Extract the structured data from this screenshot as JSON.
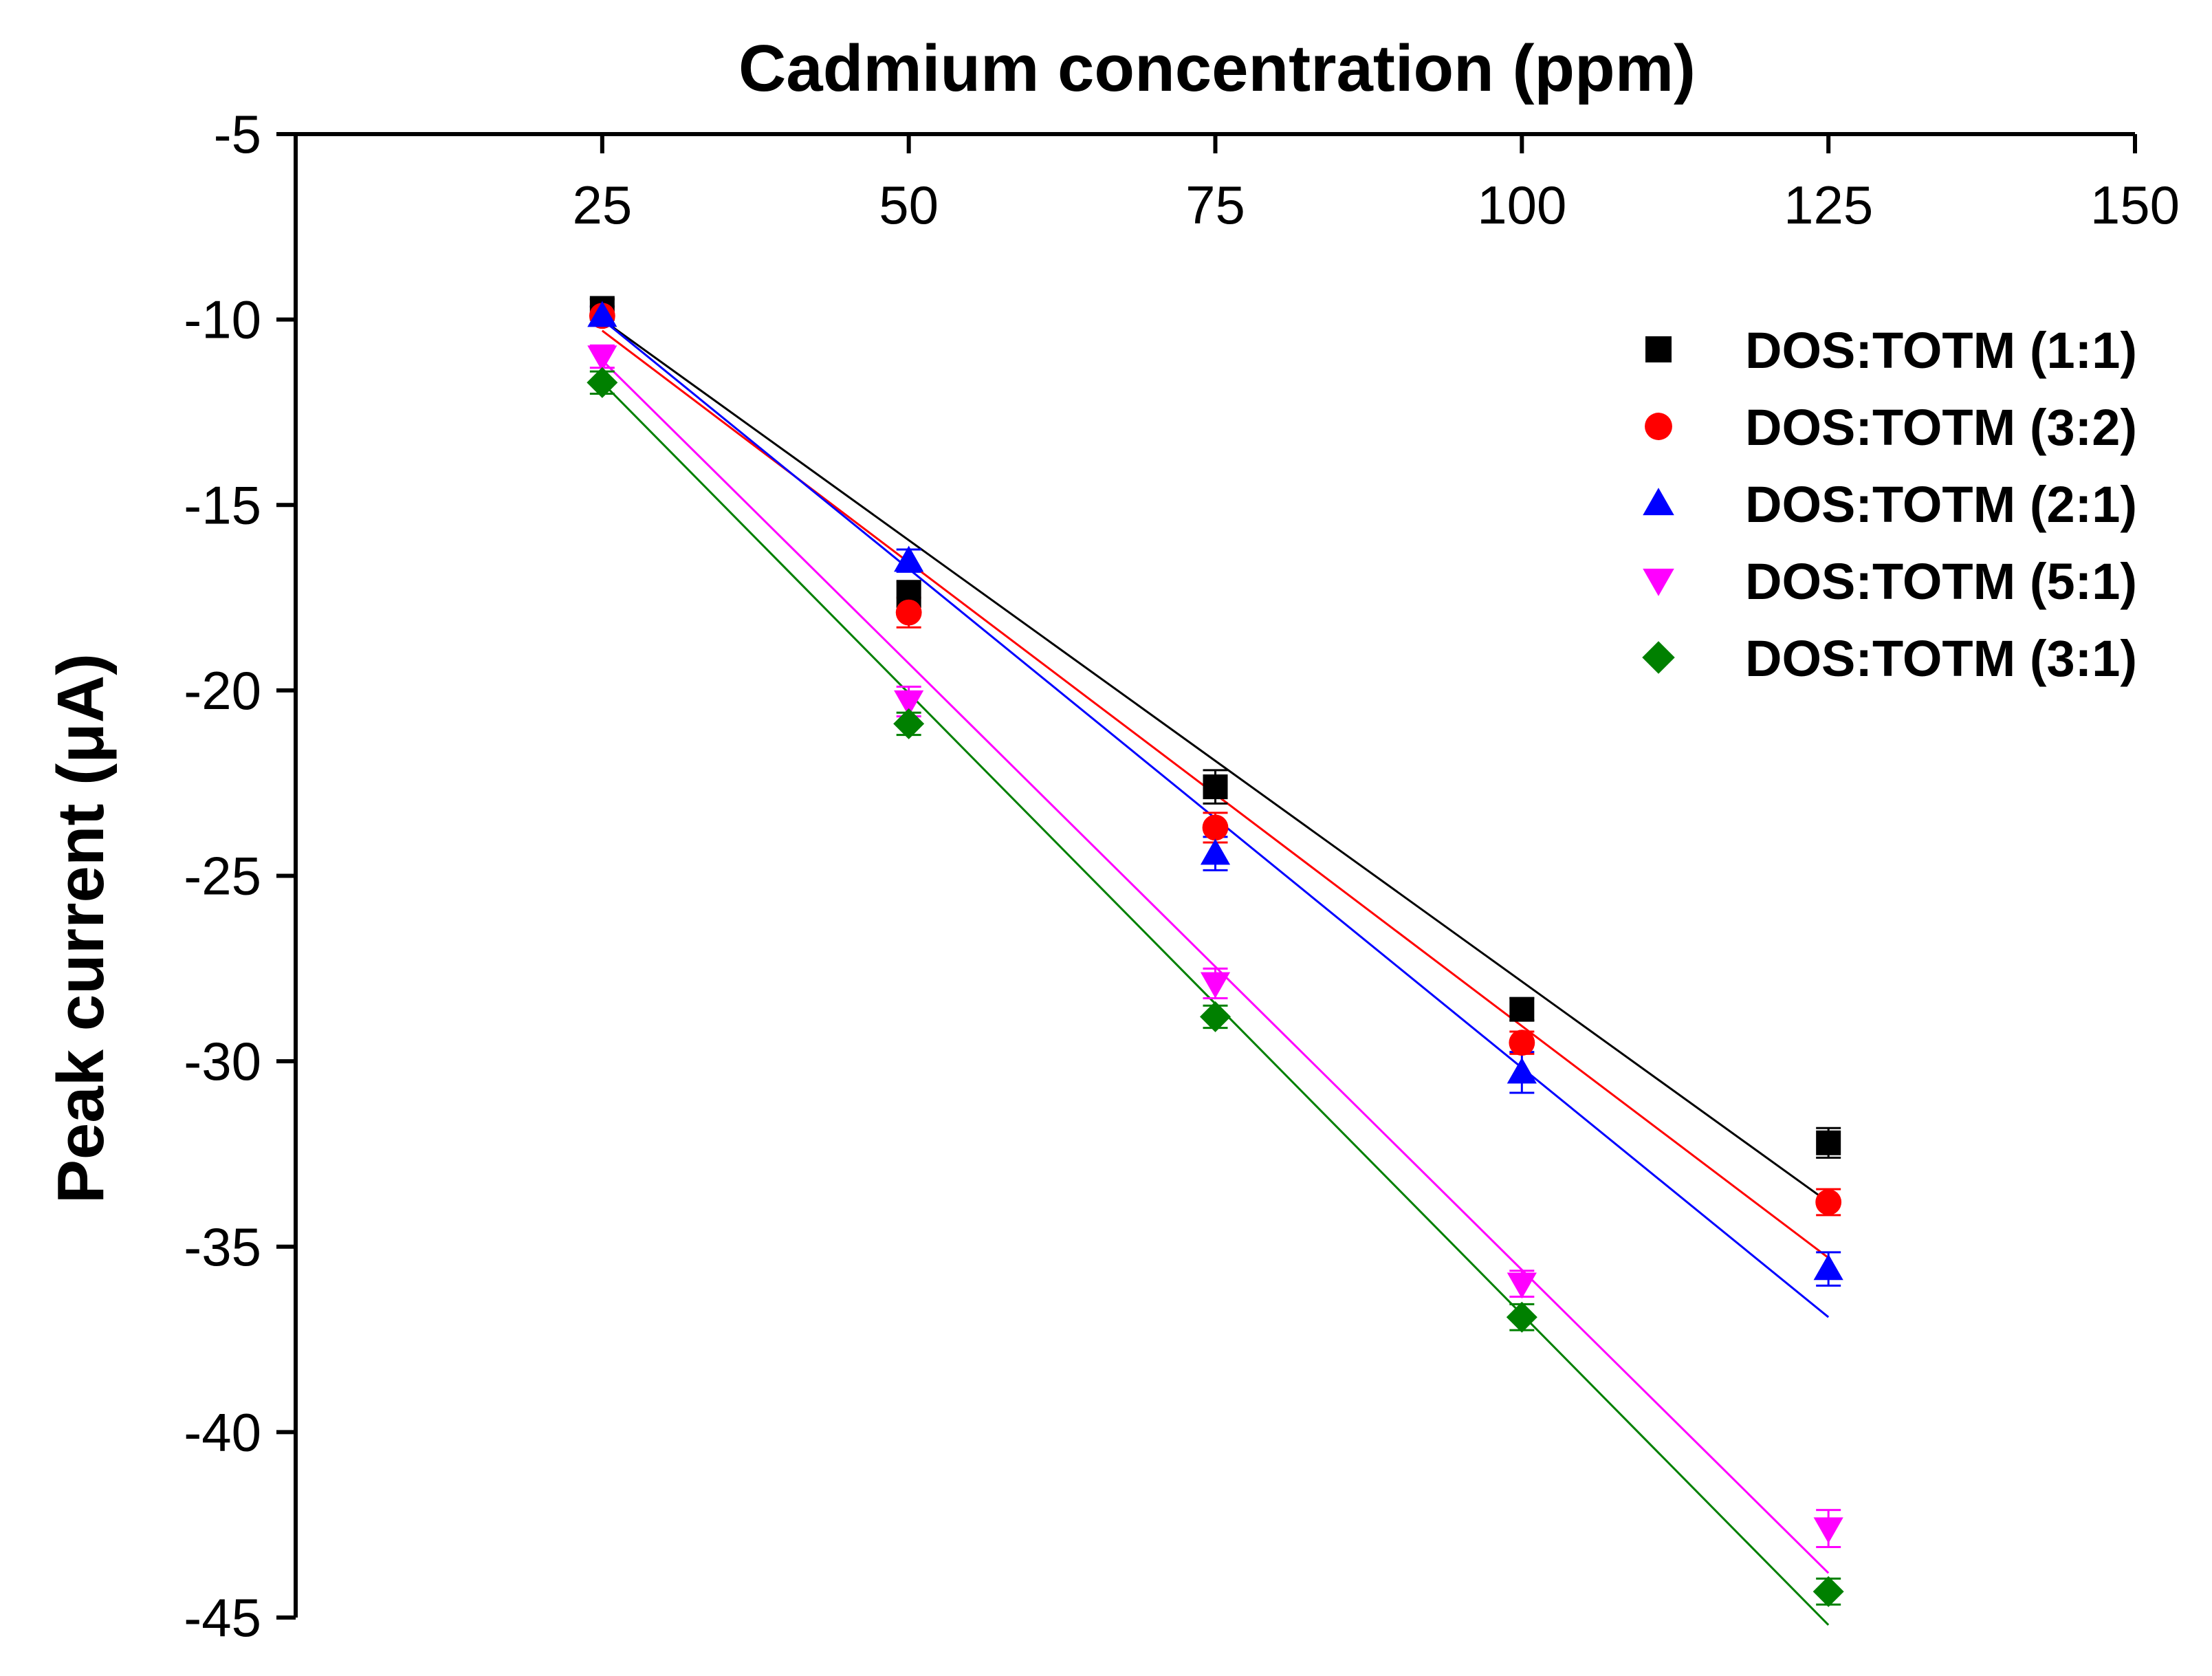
{
  "chart_data": {
    "type": "scatter",
    "title": "",
    "xlabel": "Cadmium concentration (ppm)",
    "ylabel": "Peak current (μA)",
    "xlim": [
      0,
      150
    ],
    "ylim": [
      -45,
      -5
    ],
    "x_ticks": [
      25,
      50,
      75,
      100,
      125,
      150
    ],
    "x_tick_labels": [
      "25",
      "50",
      "75",
      "100",
      "125",
      "150"
    ],
    "y_ticks": [
      -5,
      -10,
      -15,
      -20,
      -25,
      -30,
      -35,
      -40,
      -45
    ],
    "y_tick_labels": [
      "-5",
      "-10",
      "-15",
      "-20",
      "-25",
      "-30",
      "-35",
      "-40",
      "-45"
    ],
    "x_axis_position": "top",
    "grid": false,
    "legend_position": "top-right",
    "fit_lines": true,
    "x": [
      25,
      50,
      75,
      100,
      125
    ],
    "series": [
      {
        "name": "DOS:TOTM (1:1)",
        "color": "#000000",
        "marker": "square",
        "values": [
          -9.7,
          -17.4,
          -22.6,
          -28.6,
          -32.2
        ],
        "errors": [
          0.25,
          0.35,
          0.45,
          0.3,
          0.4
        ],
        "fit": [
          -10.0,
          -33.8
        ]
      },
      {
        "name": "DOS:TOTM (3:2)",
        "color": "#ff0000",
        "marker": "circle",
        "values": [
          -9.9,
          -17.9,
          -23.7,
          -29.5,
          -33.8
        ],
        "errors": [
          0.25,
          0.4,
          0.4,
          0.3,
          0.35
        ],
        "fit": [
          -10.3,
          -35.3
        ]
      },
      {
        "name": "DOS:TOTM (2:1)",
        "color": "#0000ff",
        "marker": "triangle-up",
        "values": [
          -9.9,
          -16.5,
          -24.4,
          -30.3,
          -35.6
        ],
        "errors": [
          0.25,
          0.3,
          0.45,
          0.55,
          0.45
        ],
        "fit": [
          -10.0,
          -36.9
        ]
      },
      {
        "name": "DOS:TOTM (5:1)",
        "color": "#ff00ff",
        "marker": "triangle-down",
        "values": [
          -11.0,
          -20.3,
          -27.9,
          -36.0,
          -42.6
        ],
        "errors": [
          0.3,
          0.4,
          0.4,
          0.35,
          0.5
        ],
        "fit": [
          -11.1,
          -43.8
        ]
      },
      {
        "name": "DOS:TOTM (3:1)",
        "color": "#008000",
        "marker": "diamond",
        "values": [
          -11.7,
          -20.9,
          -28.8,
          -36.9,
          -44.3
        ],
        "errors": [
          0.3,
          0.3,
          0.3,
          0.35,
          0.35
        ],
        "fit": [
          -11.7,
          -45.2
        ]
      }
    ]
  }
}
